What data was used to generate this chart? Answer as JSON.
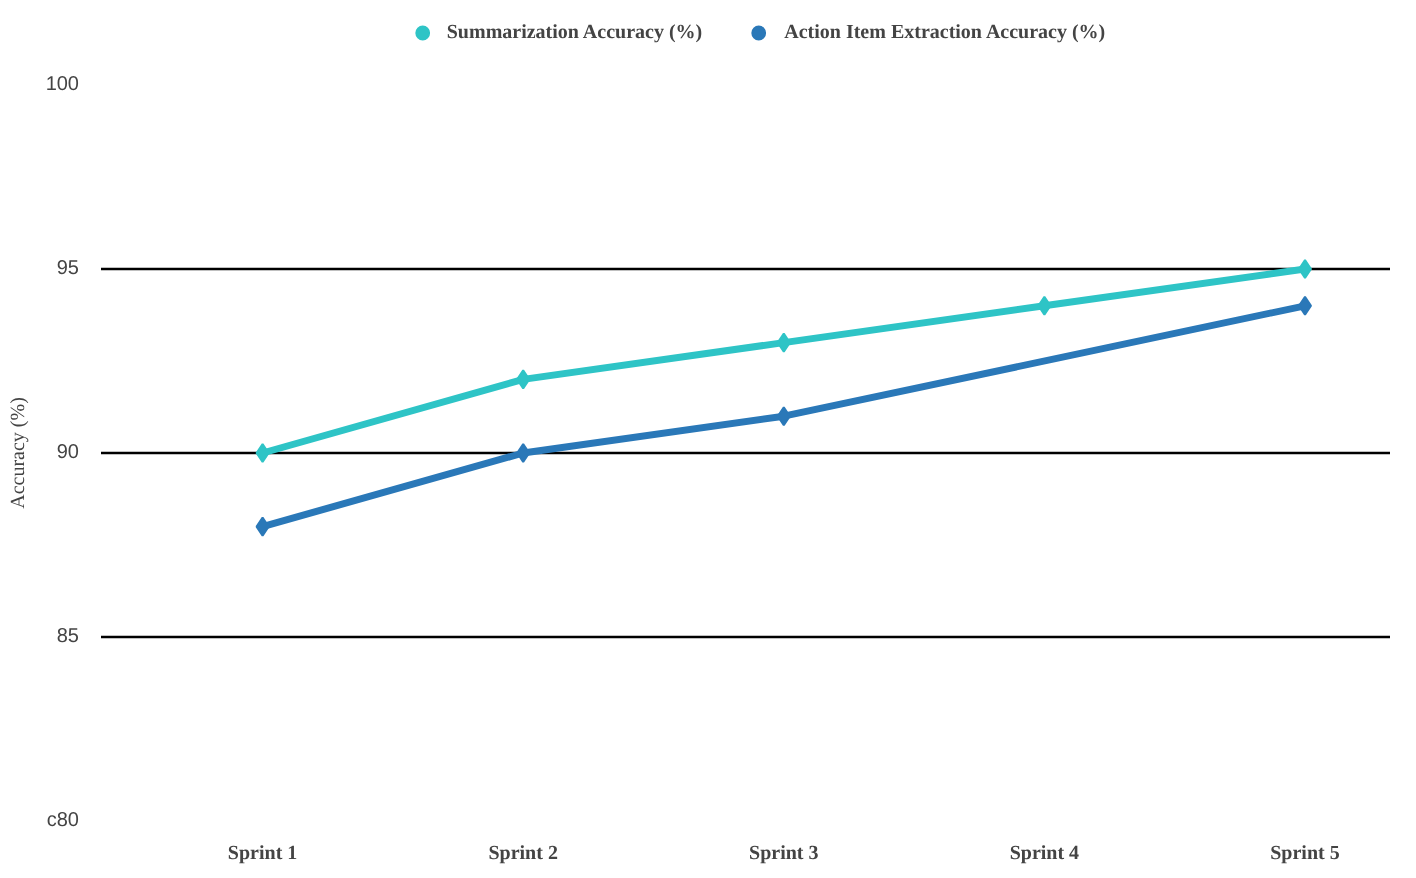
{
  "chart_data": {
    "type": "line",
    "ylabel": "Accuracy (%)",
    "categories": [
      "Sprint 1",
      "Sprint 2",
      "Sprint 3",
      "Sprint 4",
      "Sprint 5"
    ],
    "series": [
      {
        "name": "Summarization Accuracy (%)",
        "color": "#2ec4c6",
        "values": [
          90,
          92,
          93,
          94,
          95
        ]
      },
      {
        "name": "Action Item Extraction Accuracy (%)",
        "color": "#2a78b8",
        "values": [
          88,
          90,
          91,
          null,
          94
        ]
      }
    ],
    "ylim": [
      80,
      100
    ],
    "yticks": [
      {
        "value": 80,
        "label": "c80"
      },
      85,
      90,
      95,
      100
    ],
    "grid": "y",
    "legend": "top",
    "marker": "diamond",
    "line_style": "solid"
  }
}
